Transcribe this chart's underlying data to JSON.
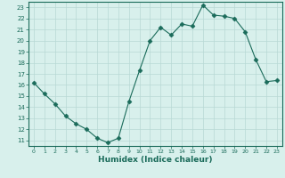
{
  "x": [
    0,
    1,
    2,
    3,
    4,
    5,
    6,
    7,
    8,
    9,
    10,
    11,
    12,
    13,
    14,
    15,
    16,
    17,
    18,
    19,
    20,
    21,
    22,
    23
  ],
  "y": [
    16.2,
    15.2,
    14.3,
    13.2,
    12.5,
    12.0,
    11.2,
    10.8,
    11.2,
    14.5,
    17.3,
    20.0,
    21.2,
    20.5,
    21.5,
    21.3,
    23.2,
    22.3,
    22.2,
    22.0,
    20.8,
    18.3,
    16.3,
    16.4
  ],
  "xlim": [
    -0.5,
    23.5
  ],
  "ylim": [
    10.5,
    23.5
  ],
  "yticks": [
    11,
    12,
    13,
    14,
    15,
    16,
    17,
    18,
    19,
    20,
    21,
    22,
    23
  ],
  "xticks": [
    0,
    1,
    2,
    3,
    4,
    5,
    6,
    7,
    8,
    9,
    10,
    11,
    12,
    13,
    14,
    15,
    16,
    17,
    18,
    19,
    20,
    21,
    22,
    23
  ],
  "xlabel": "Humidex (Indice chaleur)",
  "line_color": "#1a6b5a",
  "marker": "D",
  "marker_size": 2.5,
  "bg_color": "#d8f0ec",
  "grid_color": "#b8d8d4",
  "axes_color": "#1a6b5a",
  "label_color": "#1a6b5a",
  "tick_color": "#1a6b5a"
}
